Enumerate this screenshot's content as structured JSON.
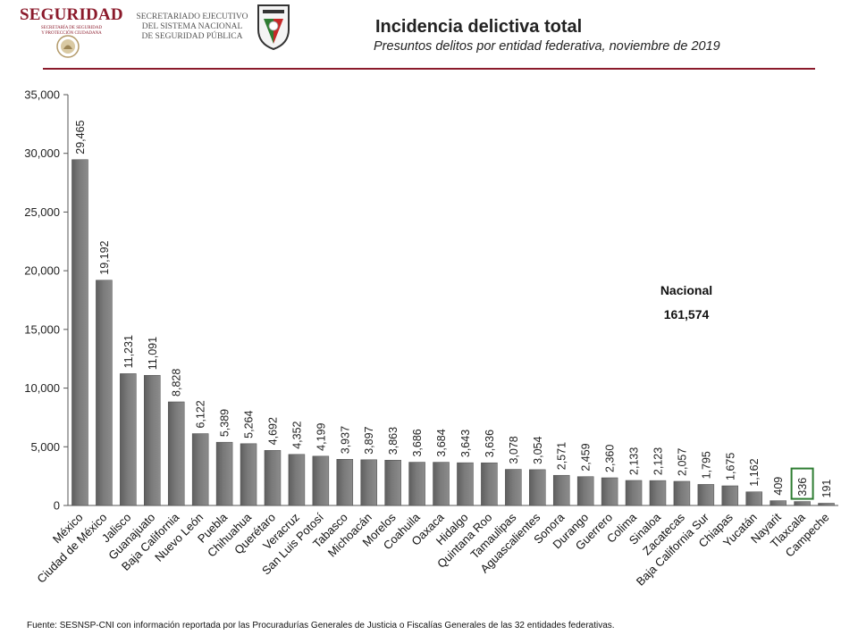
{
  "header": {
    "logo_word": "SEGURIDAD",
    "logo_sub_lines": [
      "SECRETARÍA DE SEGURIDAD",
      "Y PROTECCIÓN CIUDADANA"
    ],
    "secretariado_lines": [
      "SECRETARIADO EJECUTIVO",
      "DEL SISTEMA NACIONAL",
      "DE SEGURIDAD PÚBLICA"
    ],
    "brand_color": "#8b1a2b"
  },
  "chart_data": {
    "type": "bar",
    "title": "Incidencia delictiva total",
    "subtitle": "Presuntos delitos por entidad federativa, noviembre de 2019",
    "categories": [
      "México",
      "Ciudad de México",
      "Jalisco",
      "Guanajuato",
      "Baja California",
      "Nuevo León",
      "Puebla",
      "Chihuahua",
      "Querétaro",
      "Veracruz",
      "San Luis Potosí",
      "Tabasco",
      "Michoacán",
      "Morelos",
      "Coahuila",
      "Oaxaca",
      "Hidalgo",
      "Quintana Roo",
      "Tamaulipas",
      "Aguascalientes",
      "Sonora",
      "Durango",
      "Guerrero",
      "Colima",
      "Sinaloa",
      "Zacatecas",
      "Baja California Sur",
      "Chiapas",
      "Yucatán",
      "Nayarit",
      "Tlaxcala",
      "Campeche"
    ],
    "values": [
      29465,
      19192,
      11231,
      11091,
      8828,
      6122,
      5389,
      5264,
      4692,
      4352,
      4199,
      3937,
      3897,
      3863,
      3686,
      3684,
      3643,
      3636,
      3078,
      3054,
      2571,
      2459,
      2360,
      2133,
      2123,
      2057,
      1795,
      1675,
      1162,
      409,
      336,
      191
    ],
    "value_labels": [
      "29,465",
      "19,192",
      "11,231",
      "11,091",
      "8,828",
      "6,122",
      "5,389",
      "5,264",
      "4,692",
      "4,352",
      "4,199",
      "3,937",
      "3,897",
      "3,863",
      "3,686",
      "3,684",
      "3,643",
      "3,636",
      "3,078",
      "3,054",
      "2,571",
      "2,459",
      "2,360",
      "2,133",
      "2,123",
      "2,057",
      "1,795",
      "1,675",
      "1,162",
      "409",
      "336",
      "191"
    ],
    "ylim": [
      0,
      35000
    ],
    "yticks": [
      0,
      5000,
      10000,
      15000,
      20000,
      25000,
      30000,
      35000
    ],
    "ytick_labels": [
      "0",
      "5,000",
      "10,000",
      "15,000",
      "20,000",
      "25,000",
      "30,000",
      "35,000"
    ],
    "highlighted_category": "Tlaxcala",
    "highlight_color": "#2e7d32",
    "bar_color": "#7a7a7a",
    "grid": false,
    "legend": "none"
  },
  "nacional": {
    "label": "Nacional",
    "value": "161,574"
  },
  "source": "Fuente: SESNSP-CNI con información reportada por las Procuradurías Generales de Justicia o Fiscalías Generales de las 32 entidades federativas."
}
